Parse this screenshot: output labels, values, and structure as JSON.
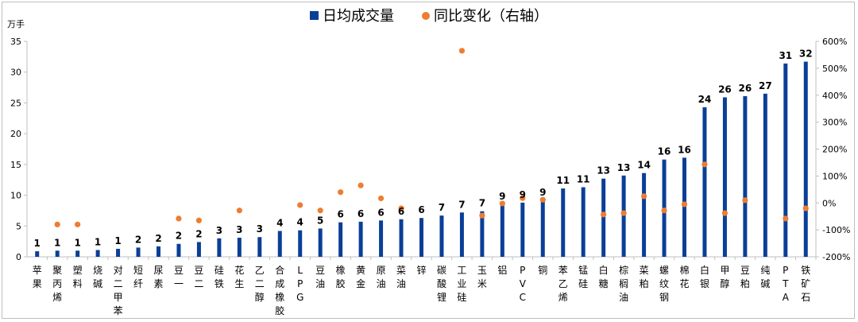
{
  "chart_data": {
    "type": "bar",
    "title": "",
    "unit_left": "万手",
    "legend": [
      {
        "name": "日均成交量",
        "color": "#0a3f97",
        "marker": "square"
      },
      {
        "name": "同比变化（右轴）",
        "color": "#ed7d31",
        "marker": "dot"
      }
    ],
    "categories": [
      [
        "苹",
        "果"
      ],
      [
        "聚",
        "丙",
        "烯"
      ],
      [
        "塑",
        "料"
      ],
      [
        "烧",
        "碱"
      ],
      [
        "对",
        "二",
        "甲",
        "苯"
      ],
      [
        "短",
        "纤"
      ],
      [
        "尿",
        "素"
      ],
      [
        "豆",
        "一"
      ],
      [
        "豆",
        "二"
      ],
      [
        "硅",
        "铁"
      ],
      [
        "花",
        "生"
      ],
      [
        "乙",
        "二",
        "醇"
      ],
      [
        "合",
        "成",
        "橡",
        "胶"
      ],
      [
        "L",
        "P",
        "G"
      ],
      [
        "豆",
        "油"
      ],
      [
        "橡",
        "胶"
      ],
      [
        "黄",
        "金"
      ],
      [
        "原",
        "油"
      ],
      [
        "菜",
        "油"
      ],
      [
        "锌"
      ],
      [
        "碳",
        "酸",
        "锂"
      ],
      [
        "工",
        "业",
        "硅"
      ],
      [
        "玉",
        "米"
      ],
      [
        "铝"
      ],
      [
        "P",
        "V",
        "C"
      ],
      [
        "铜"
      ],
      [
        "苯",
        "乙",
        "烯"
      ],
      [
        "锰",
        "硅"
      ],
      [
        "白",
        "糖"
      ],
      [
        "棕",
        "榈",
        "油"
      ],
      [
        "菜",
        "粕"
      ],
      [
        "螺",
        "纹",
        "钢"
      ],
      [
        "棉",
        "花"
      ],
      [
        "白",
        "银"
      ],
      [
        "甲",
        "醇"
      ],
      [
        "豆",
        "粕"
      ],
      [
        "纯",
        "碱"
      ],
      [
        "P",
        "T",
        "A"
      ],
      [
        "铁",
        "矿",
        "石"
      ]
    ],
    "series": [
      {
        "name": "日均成交量",
        "axis": "left",
        "values": [
          0.9,
          1.0,
          1.0,
          1.1,
          1.3,
          1.5,
          1.7,
          2.1,
          2.4,
          3.0,
          3.1,
          3.2,
          4.2,
          4.3,
          4.6,
          5.6,
          5.7,
          5.9,
          6.1,
          6.3,
          6.7,
          7.2,
          7.4,
          8.5,
          8.8,
          9.2,
          11.1,
          11.3,
          12.7,
          13.2,
          13.6,
          15.8,
          16.1,
          24.3,
          25.9,
          26.1,
          26.5,
          31.4,
          31.7
        ],
        "labels": [
          "1",
          "1",
          "1",
          "1",
          "1",
          "2",
          "2",
          "2",
          "2",
          "3",
          "3",
          "3",
          "4",
          "4",
          "5",
          "6",
          "6",
          "6",
          "6",
          "6",
          "7",
          "7",
          "7",
          "9",
          "9",
          "9",
          "11",
          "11",
          "13",
          "13",
          "14",
          "16",
          "16",
          "24",
          "26",
          "26",
          "27",
          "31",
          "32"
        ]
      },
      {
        "name": "同比变化（右轴）",
        "axis": "right",
        "values": [
          null,
          -80,
          -80,
          null,
          null,
          null,
          null,
          -58,
          -65,
          null,
          -28,
          null,
          null,
          -8,
          -28,
          40,
          65,
          17,
          -20,
          null,
          null,
          565,
          -47,
          -2,
          18,
          12,
          null,
          null,
          -43,
          -38,
          25,
          -28,
          -5,
          143,
          -38,
          10,
          null,
          -58,
          -20
        ]
      }
    ],
    "y_left": {
      "min": 0,
      "max": 35,
      "step": 5,
      "ticks": [
        "0",
        "5",
        "10",
        "15",
        "20",
        "25",
        "30",
        "35"
      ]
    },
    "y_right": {
      "min": -200,
      "max": 600,
      "step": 100,
      "ticks": [
        "-200%",
        "-100%",
        "0%",
        "100%",
        "200%",
        "300%",
        "400%",
        "500%",
        "600%"
      ]
    },
    "grid": false,
    "legend_position": "top-center"
  }
}
